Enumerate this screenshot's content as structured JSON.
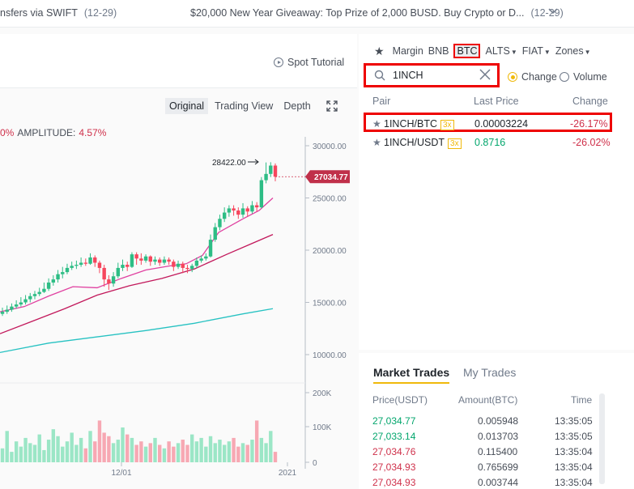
{
  "announcements": [
    {
      "text": "nsfers via SWIFT",
      "date": "(12-29)"
    },
    {
      "text": "$20,000 New Year Giveaway: Top Prize of 2,000 BUSD. Buy Crypto or D...",
      "date": "(12-29)"
    }
  ],
  "spot_tutorial": "Spot Tutorial",
  "view_tabs": [
    "Original",
    "Trading View",
    "Depth"
  ],
  "stats": {
    "change_pct": "0%",
    "amplitude_label": "AMPLITUDE:",
    "amplitude_value": "4.57%"
  },
  "chart_data": {
    "type": "candlestick",
    "price_ticks": [
      "30000.00",
      "25000.00",
      "20000.00",
      "15000.00",
      "10000.00"
    ],
    "price_range": [
      8000,
      31500
    ],
    "volume_ticks": [
      "200K",
      "100K",
      "0"
    ],
    "x_ticks": [
      "12/01",
      "2021"
    ],
    "high_annotation": "28422.00",
    "current_price": "27034.77",
    "candles": [
      [
        13900,
        14100,
        14500,
        13700
      ],
      [
        14100,
        14300,
        14700,
        13900
      ],
      [
        14300,
        14600,
        14900,
        14100
      ],
      [
        14600,
        14800,
        15200,
        14400
      ],
      [
        14800,
        15000,
        15500,
        14600
      ],
      [
        15000,
        15300,
        15700,
        14800
      ],
      [
        15300,
        15600,
        15900,
        15000
      ],
      [
        15600,
        15800,
        16100,
        15300
      ],
      [
        15800,
        16000,
        16400,
        15600
      ],
      [
        16000,
        16300,
        16900,
        15900
      ],
      [
        16300,
        16900,
        17300,
        16100
      ],
      [
        16900,
        17200,
        17600,
        16600
      ],
      [
        17200,
        17700,
        18100,
        16900
      ],
      [
        17700,
        17900,
        18400,
        17300
      ],
      [
        17900,
        18300,
        18700,
        17700
      ],
      [
        18300,
        18500,
        18900,
        18100
      ],
      [
        18500,
        18600,
        19000,
        18200
      ],
      [
        18600,
        18800,
        19300,
        18400
      ],
      [
        18800,
        18700,
        19200,
        18500
      ],
      [
        18700,
        19300,
        19700,
        18600
      ],
      [
        19300,
        18800,
        19500,
        18400
      ],
      [
        18800,
        18300,
        19000,
        17800
      ],
      [
        18300,
        17200,
        18600,
        16500
      ],
      [
        17200,
        16800,
        17600,
        16200
      ],
      [
        16800,
        17500,
        17900,
        16500
      ],
      [
        17500,
        18300,
        18800,
        17300
      ],
      [
        18300,
        18600,
        19100,
        18000
      ],
      [
        18600,
        18400,
        18900,
        18000
      ],
      [
        18400,
        19600,
        19800,
        18300
      ],
      [
        19600,
        19200,
        19800,
        18600
      ],
      [
        19200,
        19000,
        19700,
        18600
      ],
      [
        19000,
        19400,
        19600,
        18800
      ],
      [
        19400,
        18900,
        19500,
        18500
      ],
      [
        18900,
        19100,
        19400,
        18600
      ],
      [
        19100,
        18800,
        19300,
        18500
      ],
      [
        18800,
        19100,
        19400,
        18600
      ],
      [
        19100,
        18900,
        19300,
        18600
      ],
      [
        18900,
        18400,
        19100,
        18000
      ],
      [
        18400,
        18700,
        19000,
        18200
      ],
      [
        18700,
        18300,
        18900,
        17800
      ],
      [
        18300,
        18200,
        18600,
        17800
      ],
      [
        18200,
        18500,
        18700,
        17900
      ],
      [
        18500,
        19000,
        19300,
        18300
      ],
      [
        19000,
        19200,
        19500,
        18800
      ],
      [
        19200,
        19400,
        19700,
        19000
      ],
      [
        19400,
        21000,
        21500,
        19300
      ],
      [
        21000,
        22200,
        22600,
        20800
      ],
      [
        22200,
        23000,
        23400,
        21900
      ],
      [
        23000,
        23600,
        24100,
        22700
      ],
      [
        23600,
        24000,
        24300,
        23200
      ],
      [
        24000,
        23800,
        24300,
        23300
      ],
      [
        23800,
        23400,
        24100,
        23000
      ],
      [
        23400,
        24000,
        24500,
        23100
      ],
      [
        24000,
        23700,
        24200,
        23200
      ],
      [
        23700,
        24300,
        24700,
        23500
      ],
      [
        24300,
        24100,
        24600,
        23700
      ],
      [
        24100,
        26700,
        27000,
        24000
      ],
      [
        26700,
        27300,
        28400,
        26400
      ],
      [
        27300,
        28100,
        28422,
        27000
      ],
      [
        28100,
        27035,
        28300,
        26600
      ]
    ],
    "volumes": [
      40,
      90,
      30,
      60,
      45,
      70,
      55,
      50,
      80,
      35,
      65,
      95,
      75,
      45,
      60,
      85,
      50,
      70,
      40,
      90,
      60,
      120,
      85,
      75,
      55,
      65,
      100,
      80,
      70,
      50,
      60,
      45,
      55,
      70,
      50,
      40,
      60,
      45,
      55,
      65,
      50,
      80,
      60,
      70,
      45,
      75,
      55,
      65,
      50,
      60,
      70,
      45,
      55,
      50,
      65,
      120,
      70,
      55,
      90,
      30
    ]
  },
  "categories": [
    {
      "label": "Margin",
      "highlight": false,
      "caret": false
    },
    {
      "label": "BNB",
      "highlight": false,
      "caret": false
    },
    {
      "label": "BTC",
      "highlight": true,
      "caret": false
    },
    {
      "label": "ALTS",
      "highlight": false,
      "caret": true
    },
    {
      "label": "FIAT",
      "highlight": false,
      "caret": true
    },
    {
      "label": "Zones",
      "highlight": false,
      "caret": true
    }
  ],
  "search": {
    "value": "1INCH"
  },
  "radio": {
    "change": "Change",
    "volume": "Volume"
  },
  "pairs_header": {
    "pair": "Pair",
    "last": "Last Price",
    "change": "Change"
  },
  "pairs": [
    {
      "name": "1INCH/BTC",
      "lev": "3x",
      "price": "0.00003224",
      "change": "-26.17%",
      "color": "#1e2329"
    },
    {
      "name": "1INCH/USDT",
      "lev": "3x",
      "price": "0.8716",
      "change": "-26.02%",
      "color": "#03a66d"
    }
  ],
  "trade_tabs": {
    "market": "Market Trades",
    "my": "My Trades"
  },
  "trade_headers": {
    "price": "Price(USDT)",
    "amount": "Amount(BTC)",
    "time": "Time"
  },
  "trades": [
    {
      "price": "27,034.77",
      "amount": "0.005948",
      "time": "13:35:05",
      "side": "up"
    },
    {
      "price": "27,033.14",
      "amount": "0.013703",
      "time": "13:35:05",
      "side": "up"
    },
    {
      "price": "27,034.76",
      "amount": "0.115400",
      "time": "13:35:04",
      "side": "down"
    },
    {
      "price": "27,034.93",
      "amount": "0.765699",
      "time": "13:35:04",
      "side": "down"
    },
    {
      "price": "27,034.93",
      "amount": "0.003744",
      "time": "13:35:04",
      "side": "down"
    }
  ],
  "colors": {
    "up": "#03a66d",
    "down": "#cf304a",
    "accent": "#f0b90b",
    "highlight_box": "#ee0000"
  }
}
